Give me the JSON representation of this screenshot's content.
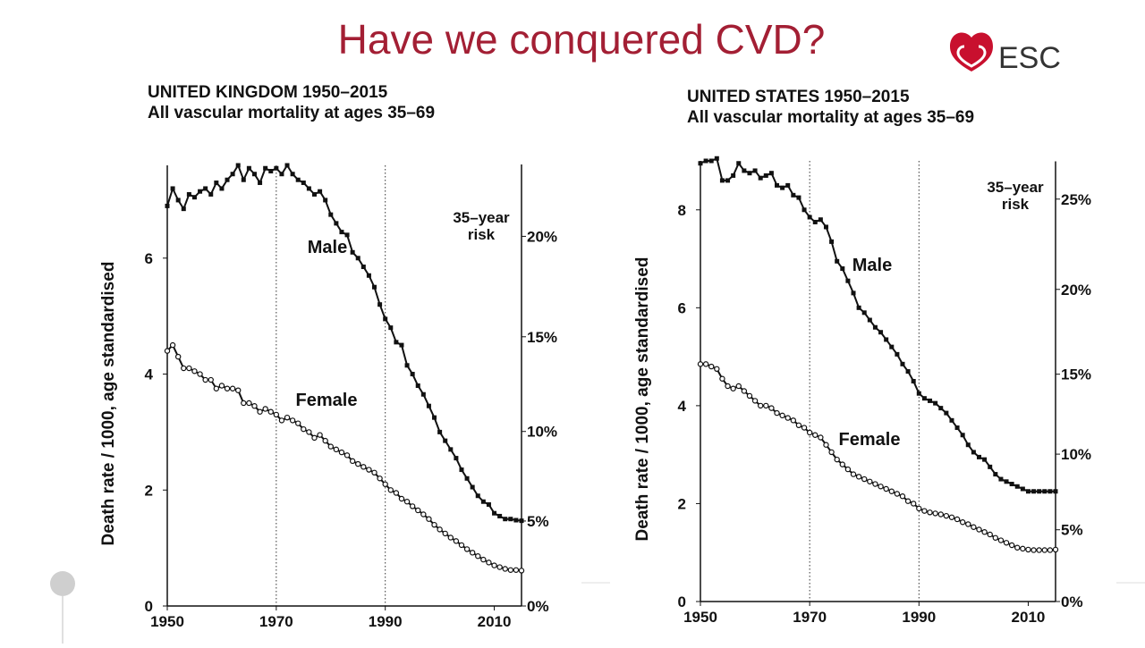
{
  "title": "Have we conquered CVD?",
  "logo": "ESC",
  "chart_data": [
    {
      "type": "line",
      "title": "UNITED KINGDOM 1950–2015",
      "subtitle": "All vascular mortality at ages 35–69",
      "y_label": "Death rate / 1000, age standardised",
      "y2_label_lines": [
        "35–year",
        "risk"
      ],
      "xlim": [
        1950,
        2015
      ],
      "xticks": [
        1950,
        1970,
        1990,
        2010
      ],
      "reference_lines_x": [
        1970,
        1990
      ],
      "ylim": [
        0,
        7.6
      ],
      "yticks": [
        0,
        2,
        4,
        6
      ],
      "y2lim": [
        0,
        23.4
      ],
      "y2ticks": [
        {
          "value": 0,
          "label": "0%"
        },
        {
          "value": 5,
          "label": "5%"
        },
        {
          "value": 10,
          "label": "10%"
        },
        {
          "value": 15,
          "label": "15%"
        },
        {
          "value": 20,
          "label": "20%"
        }
      ],
      "x": [
        1950,
        1951,
        1952,
        1953,
        1954,
        1955,
        1956,
        1957,
        1958,
        1959,
        1960,
        1961,
        1962,
        1963,
        1964,
        1965,
        1966,
        1967,
        1968,
        1969,
        1970,
        1971,
        1972,
        1973,
        1974,
        1975,
        1976,
        1977,
        1978,
        1979,
        1980,
        1981,
        1982,
        1983,
        1984,
        1985,
        1986,
        1987,
        1988,
        1989,
        1990,
        1991,
        1992,
        1993,
        1994,
        1995,
        1996,
        1997,
        1998,
        1999,
        2000,
        2001,
        2002,
        2003,
        2004,
        2005,
        2006,
        2007,
        2008,
        2009,
        2010,
        2011,
        2012,
        2013,
        2014,
        2015
      ],
      "series": [
        {
          "name": "Male",
          "color": "#111111",
          "marker": "square",
          "values": [
            6.9,
            7.2,
            7.0,
            6.85,
            7.1,
            7.05,
            7.15,
            7.2,
            7.1,
            7.3,
            7.2,
            7.35,
            7.45,
            7.6,
            7.35,
            7.55,
            7.45,
            7.3,
            7.55,
            7.5,
            7.55,
            7.45,
            7.6,
            7.45,
            7.35,
            7.3,
            7.2,
            7.1,
            7.15,
            7.0,
            6.75,
            6.6,
            6.45,
            6.4,
            6.1,
            6.0,
            5.85,
            5.7,
            5.5,
            5.2,
            4.95,
            4.8,
            4.55,
            4.5,
            4.15,
            4.0,
            3.8,
            3.65,
            3.45,
            3.25,
            3.0,
            2.85,
            2.7,
            2.55,
            2.35,
            2.2,
            2.05,
            1.9,
            1.8,
            1.75,
            1.6,
            1.55,
            1.5,
            1.5,
            1.48,
            1.47
          ]
        },
        {
          "name": "Female",
          "color": "#111111",
          "marker": "circle",
          "values": [
            4.4,
            4.5,
            4.3,
            4.1,
            4.1,
            4.05,
            4.0,
            3.9,
            3.9,
            3.75,
            3.8,
            3.75,
            3.75,
            3.72,
            3.5,
            3.5,
            3.45,
            3.35,
            3.4,
            3.35,
            3.3,
            3.2,
            3.25,
            3.2,
            3.15,
            3.05,
            3.0,
            2.9,
            2.95,
            2.85,
            2.75,
            2.7,
            2.65,
            2.6,
            2.5,
            2.45,
            2.4,
            2.35,
            2.3,
            2.2,
            2.1,
            2.0,
            1.95,
            1.85,
            1.8,
            1.72,
            1.65,
            1.58,
            1.5,
            1.4,
            1.32,
            1.25,
            1.18,
            1.12,
            1.05,
            0.98,
            0.92,
            0.86,
            0.8,
            0.75,
            0.7,
            0.67,
            0.64,
            0.62,
            0.62,
            0.61
          ]
        }
      ]
    },
    {
      "type": "line",
      "title": "UNITED STATES 1950–2015",
      "subtitle": "All vascular mortality at ages 35–69",
      "y_label": "Death rate / 1000, age standardised",
      "y2_label_lines": [
        "35–year",
        "risk"
      ],
      "xlim": [
        1950,
        2015
      ],
      "xticks": [
        1950,
        1970,
        1990,
        2010
      ],
      "reference_lines_x": [
        1970,
        1990
      ],
      "ylim": [
        0,
        9
      ],
      "yticks": [
        0,
        2,
        4,
        6,
        8
      ],
      "y2lim": [
        0,
        27
      ],
      "y2ticks": [
        {
          "value": 0,
          "label": "0%"
        },
        {
          "value": 5,
          "label": "5%"
        },
        {
          "value": 10,
          "label": "10%"
        },
        {
          "value": 15,
          "label": "15%"
        },
        {
          "value": 20,
          "label": "20%"
        },
        {
          "value": 25,
          "label": "25%"
        }
      ],
      "x": [
        1950,
        1951,
        1952,
        1953,
        1954,
        1955,
        1956,
        1957,
        1958,
        1959,
        1960,
        1961,
        1962,
        1963,
        1964,
        1965,
        1966,
        1967,
        1968,
        1969,
        1970,
        1971,
        1972,
        1973,
        1974,
        1975,
        1976,
        1977,
        1978,
        1979,
        1980,
        1981,
        1982,
        1983,
        1984,
        1985,
        1986,
        1987,
        1988,
        1989,
        1990,
        1991,
        1992,
        1993,
        1994,
        1995,
        1996,
        1997,
        1998,
        1999,
        2000,
        2001,
        2002,
        2003,
        2004,
        2005,
        2006,
        2007,
        2008,
        2009,
        2010,
        2011,
        2012,
        2013,
        2014,
        2015
      ],
      "series": [
        {
          "name": "Male",
          "color": "#111111",
          "marker": "square",
          "values": [
            8.95,
            9.0,
            9.0,
            9.05,
            8.6,
            8.6,
            8.7,
            8.95,
            8.8,
            8.75,
            8.8,
            8.65,
            8.7,
            8.75,
            8.5,
            8.45,
            8.5,
            8.3,
            8.25,
            8.0,
            7.85,
            7.75,
            7.8,
            7.65,
            7.35,
            6.95,
            6.8,
            6.55,
            6.3,
            6.0,
            5.9,
            5.75,
            5.6,
            5.5,
            5.35,
            5.2,
            5.05,
            4.85,
            4.7,
            4.5,
            4.25,
            4.15,
            4.1,
            4.05,
            3.95,
            3.85,
            3.7,
            3.55,
            3.4,
            3.2,
            3.05,
            2.95,
            2.9,
            2.75,
            2.6,
            2.5,
            2.45,
            2.4,
            2.35,
            2.3,
            2.25,
            2.25,
            2.25,
            2.25,
            2.25,
            2.25
          ]
        },
        {
          "name": "Female",
          "color": "#111111",
          "marker": "circle",
          "values": [
            4.85,
            4.85,
            4.8,
            4.75,
            4.55,
            4.4,
            4.35,
            4.4,
            4.3,
            4.2,
            4.1,
            4.0,
            4.0,
            3.95,
            3.85,
            3.8,
            3.75,
            3.7,
            3.6,
            3.55,
            3.45,
            3.4,
            3.35,
            3.2,
            3.05,
            2.9,
            2.8,
            2.7,
            2.6,
            2.55,
            2.5,
            2.45,
            2.4,
            2.35,
            2.3,
            2.25,
            2.2,
            2.15,
            2.05,
            2.0,
            1.9,
            1.85,
            1.82,
            1.8,
            1.78,
            1.75,
            1.72,
            1.68,
            1.62,
            1.58,
            1.52,
            1.47,
            1.42,
            1.37,
            1.3,
            1.25,
            1.2,
            1.15,
            1.1,
            1.08,
            1.06,
            1.05,
            1.05,
            1.05,
            1.05,
            1.06
          ]
        }
      ]
    }
  ]
}
